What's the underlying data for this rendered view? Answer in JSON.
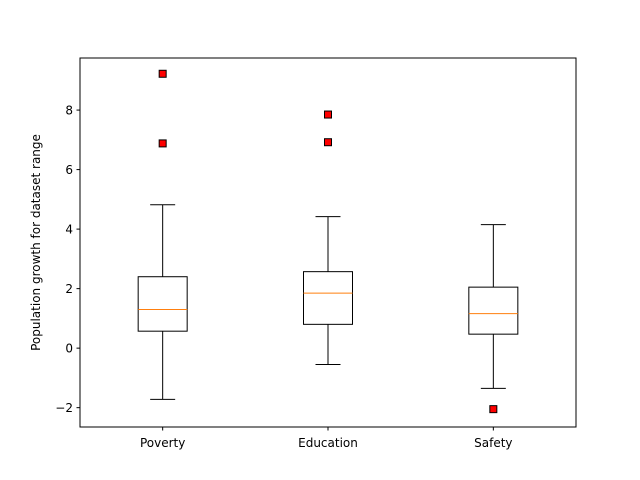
{
  "chart_data": {
    "type": "box",
    "categories": [
      "Poverty",
      "Education",
      "Safety"
    ],
    "ylabel": "Population growth for dataset range",
    "xlabel": "",
    "ylim": [
      -2.65,
      9.75
    ],
    "yticks": [
      -2,
      0,
      2,
      4,
      6,
      8
    ],
    "ytick_labels": [
      "−2",
      "0",
      "2",
      "4",
      "6",
      "8"
    ],
    "boxes": [
      {
        "category": "Poverty",
        "whisker_low": -1.72,
        "q1": 0.57,
        "median": 1.3,
        "q3": 2.4,
        "whisker_high": 4.82,
        "outliers": [
          6.88,
          9.22
        ]
      },
      {
        "category": "Education",
        "whisker_low": -0.55,
        "q1": 0.8,
        "median": 1.85,
        "q3": 2.57,
        "whisker_high": 4.42,
        "outliers": [
          6.92,
          7.85
        ]
      },
      {
        "category": "Safety",
        "whisker_low": -1.35,
        "q1": 0.47,
        "median": 1.16,
        "q3": 2.05,
        "whisker_high": 4.15,
        "outliers": [
          -2.05
        ]
      }
    ],
    "grid": false,
    "colors": {
      "box": "#000000",
      "median": "#ff7f0e",
      "flier_fill": "#ff0000",
      "flier_edge": "#000000"
    }
  }
}
